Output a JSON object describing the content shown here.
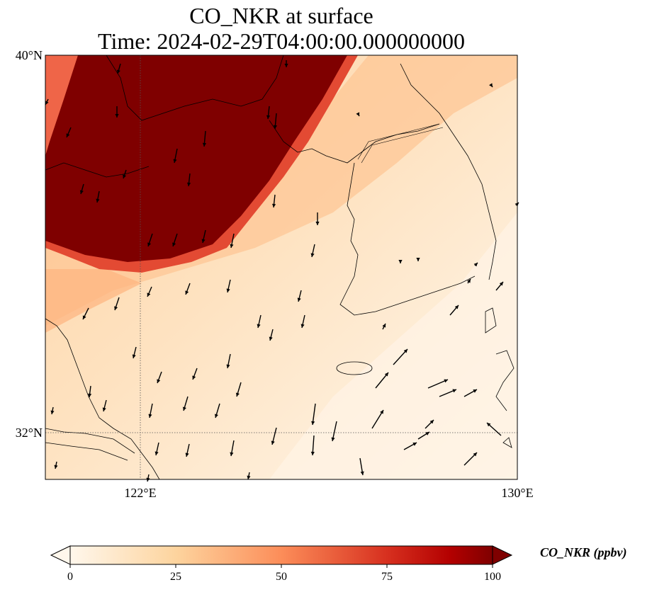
{
  "title": {
    "line1": "CO_NKR at surface",
    "line2": "Time: 2024-02-29T04:00:00.000000000"
  },
  "axes": {
    "lat_labels": [
      "40°N",
      "32°N"
    ],
    "lon_labels": [
      "122°E",
      "130°E"
    ],
    "gridlines": "dotted at 122°E and 32°N"
  },
  "colorbar": {
    "label": "CO_NKR (ppbv)",
    "ticks": [
      "0",
      "25",
      "50",
      "75",
      "100"
    ],
    "min": 0,
    "max": 100,
    "colormap": "OrRd",
    "extend": "both"
  },
  "field": {
    "high_region": "dark red (>=100 ppbv) plume over northwest quadrant (Bohai / Shandong area)",
    "background": "pale orange 5-30 ppbv over Korean peninsula and Yellow Sea",
    "wind_vectors": "black arrows, mostly southward / south-southwestward, northeastward over southeast sea"
  },
  "colors": {
    "plume": "#7f0000",
    "edge": "#d7301f",
    "mid": "#fdbb84",
    "low": "#fee8c8",
    "min": "#fff7ec"
  }
}
